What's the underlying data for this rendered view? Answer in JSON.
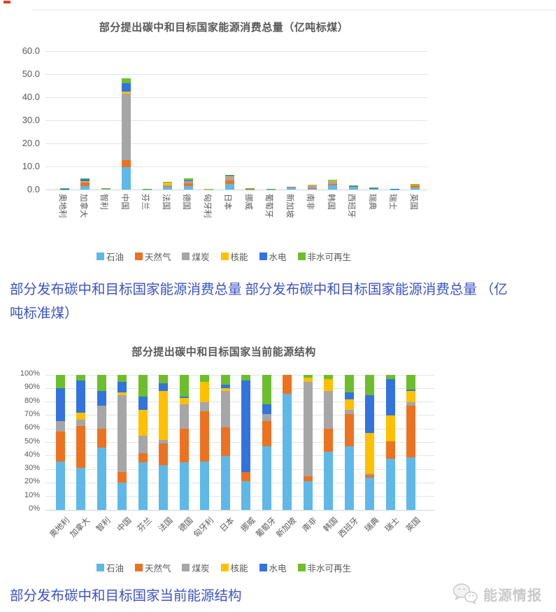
{
  "captions": {
    "between_line1": "部分发布碳中和目标国家能源消费总量 部分发布碳中和目标国家能源消费总量 （亿",
    "between_line2": "吨标准煤）",
    "bottom": "部分发布碳中和目标国家当前能源结构"
  },
  "watermark": {
    "icon": "wechat-logo-icon",
    "text": "能源情报"
  },
  "colors": {
    "caption_text": "#3C53C5",
    "chart_text": "#595959",
    "gridline": "#dde6eb",
    "oil": "#5EB9E8",
    "gas": "#ED7220",
    "coal": "#A6A6A6",
    "nuclear": "#FFC000",
    "hydro": "#3273DE",
    "non_hydro_renewable": "#6CBE2C"
  },
  "chart_data": [
    {
      "type": "bar",
      "stacked": true,
      "title": "部分提出碳中和目标国家能源消费总量（亿吨标煤）",
      "xlabel": "",
      "ylabel": "",
      "ylim": [
        0,
        60
      ],
      "ytick_step": 10,
      "ytick_decimals": 1,
      "ytick_suffix": "",
      "grid": true,
      "legend_position": "bottom",
      "categories": [
        "奥地利",
        "加拿大",
        "智利",
        "中国",
        "芬兰",
        "法国",
        "德国",
        "匈牙利",
        "日本",
        "挪威",
        "葡萄牙",
        "新加坡",
        "南非",
        "韩国",
        "西班牙",
        "瑞典",
        "瑞士",
        "英国"
      ],
      "series": [
        {
          "name": "石油",
          "color": "#5EB9E8",
          "values": [
            0.15,
            1.5,
            0.25,
            9.8,
            0.15,
            1.1,
            1.6,
            0.14,
            2.5,
            0.15,
            0.15,
            1.1,
            0.5,
            1.7,
            0.85,
            0.2,
            0.15,
            1.0
          ]
        },
        {
          "name": "天然气",
          "color": "#ED7220",
          "values": [
            0.12,
            1.6,
            0.08,
            3.0,
            0.03,
            0.55,
            1.15,
            0.15,
            1.4,
            0.07,
            0.07,
            0.2,
            0.08,
            0.7,
            0.43,
            0.01,
            0.05,
            0.95
          ]
        },
        {
          "name": "煤炭",
          "color": "#A6A6A6",
          "values": [
            0.05,
            0.2,
            0.12,
            28.7,
            0.05,
            0.1,
            0.85,
            0.03,
            1.7,
            0.01,
            0.02,
            0,
            1.55,
            1.2,
            0.06,
            0.01,
            0,
            0.08
          ]
        },
        {
          "name": "核能",
          "color": "#FFC000",
          "values": [
            0,
            0.3,
            0,
            1.0,
            0.08,
            1.3,
            0.25,
            0.06,
            0.15,
            0,
            0,
            0,
            0.05,
            0.45,
            0.14,
            0.25,
            0.08,
            0.2
          ]
        },
        {
          "name": "水电",
          "color": "#3273DE",
          "values": [
            0.06,
            1.2,
            0.04,
            3.5,
            0.05,
            0.2,
            0.1,
            0,
            0.2,
            0.25,
            0.03,
            0,
            0,
            0.02,
            0.08,
            0.22,
            0.1,
            0.02
          ]
        },
        {
          "name": "非水可再生",
          "color": "#6CBE2C",
          "values": [
            0.12,
            0.2,
            0.06,
            2.2,
            0.09,
            0.2,
            0.75,
            0.02,
            0.45,
            0.03,
            0.08,
            0.02,
            0.02,
            0.12,
            0.24,
            0.12,
            0.02,
            0.3
          ]
        }
      ]
    },
    {
      "type": "bar",
      "stacked": true,
      "percent": true,
      "title": "部分提出碳中和目标国家当前能源结构",
      "xlabel": "",
      "ylabel": "",
      "ylim": [
        0,
        100
      ],
      "ytick_step": 10,
      "ytick_decimals": 0,
      "ytick_suffix": "%",
      "grid": true,
      "legend_position": "bottom",
      "categories": [
        "奥地利",
        "加拿大",
        "智利",
        "中国",
        "芬兰",
        "法国",
        "德国",
        "匈牙利",
        "日本",
        "挪威",
        "葡萄牙",
        "新加坡",
        "南非",
        "韩国",
        "西班牙",
        "瑞典",
        "瑞士",
        "英国"
      ],
      "series": [
        {
          "name": "石油",
          "color": "#5EB9E8",
          "values": [
            36,
            31,
            46,
            20,
            35,
            33,
            35,
            36,
            40,
            21,
            47,
            86,
            21,
            43,
            47,
            24,
            38,
            39
          ]
        },
        {
          "name": "天然气",
          "color": "#ED7220",
          "values": [
            22,
            31,
            14,
            8,
            7,
            16,
            25,
            37,
            21,
            7,
            19,
            14,
            4,
            17,
            24,
            2,
            13,
            38
          ]
        },
        {
          "name": "煤炭",
          "color": "#A6A6A6",
          "values": [
            8,
            5,
            17,
            57,
            13,
            3,
            18,
            7,
            27,
            0,
            5,
            0,
            70,
            28,
            3,
            1,
            0,
            3
          ]
        },
        {
          "name": "核能",
          "color": "#FFC000",
          "values": [
            0,
            5,
            0,
            2,
            19,
            36,
            5,
            15,
            2,
            0,
            0,
            0,
            3,
            9,
            8,
            30,
            19,
            8
          ]
        },
        {
          "name": "水电",
          "color": "#3273DE",
          "values": [
            24,
            24,
            11,
            8,
            10,
            6,
            1,
            0,
            3,
            68,
            7,
            0,
            0,
            0,
            5,
            28,
            27,
            1
          ]
        },
        {
          "name": "非水可再生",
          "color": "#6CBE2C",
          "values": [
            10,
            4,
            12,
            5,
            16,
            6,
            16,
            5,
            7,
            4,
            22,
            0,
            2,
            3,
            13,
            15,
            3,
            11
          ]
        }
      ]
    }
  ]
}
